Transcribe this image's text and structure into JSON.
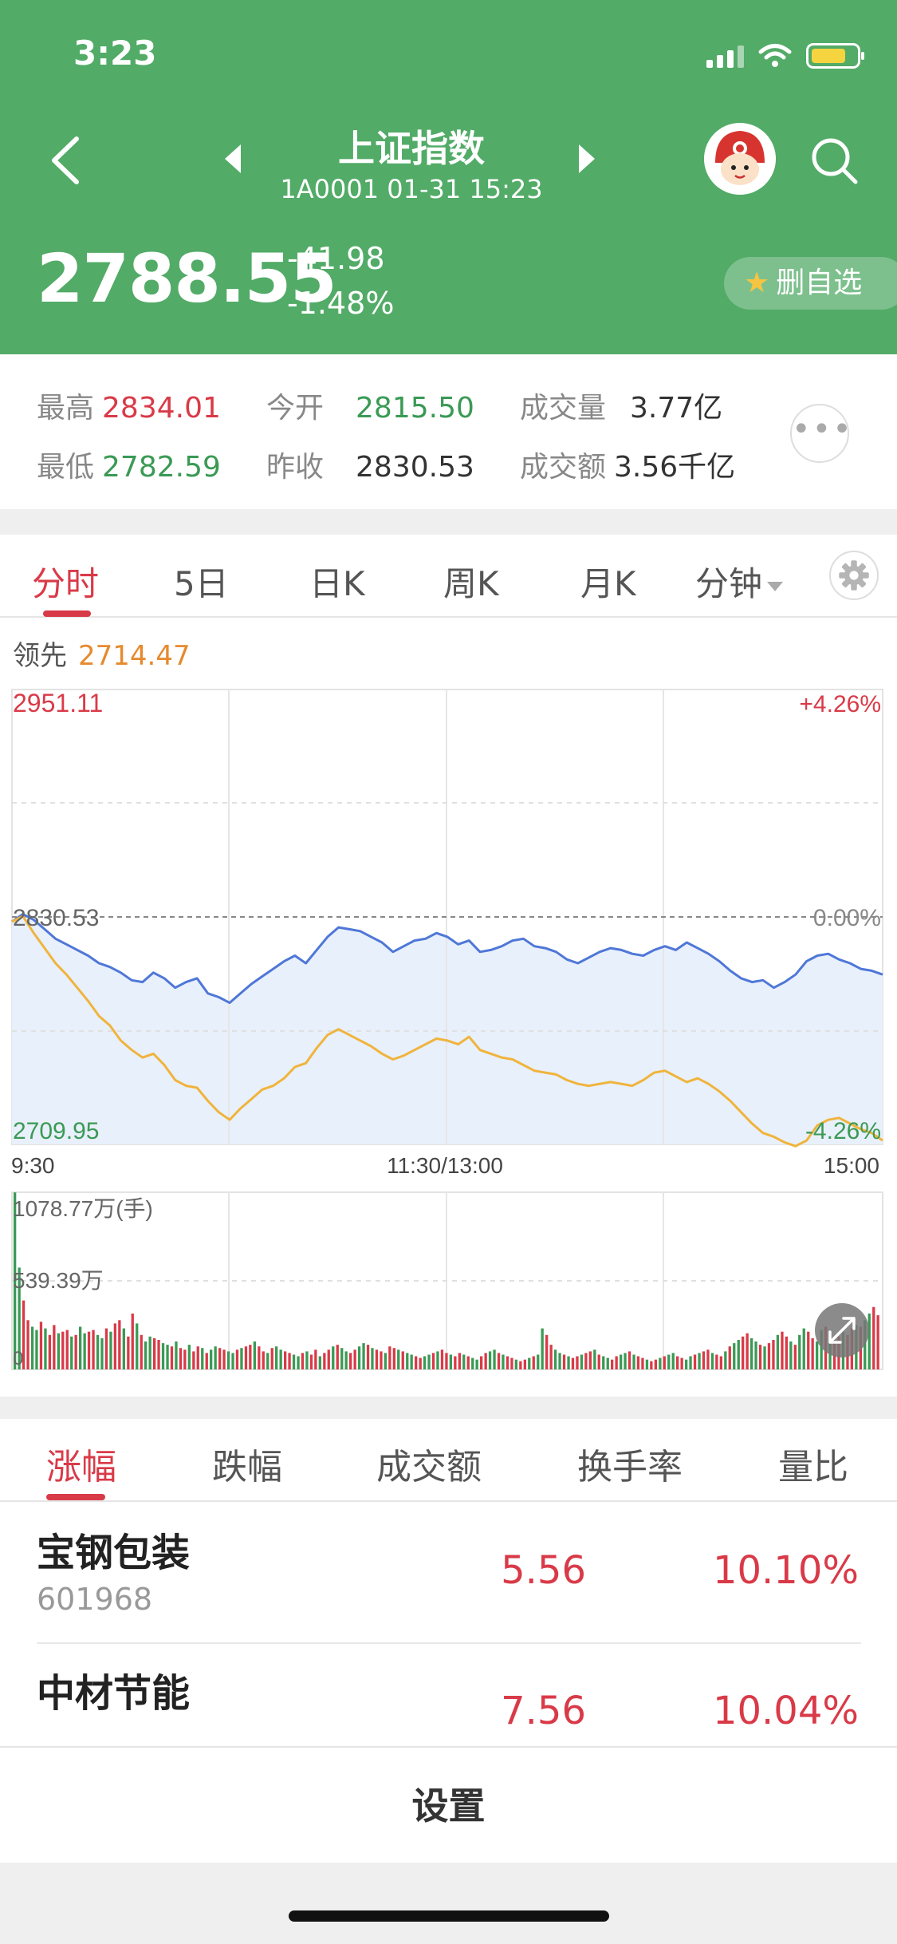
{
  "status": {
    "time": "3:23"
  },
  "header": {
    "title": "上证指数",
    "subtitle": "1A0001   01-31 15:23",
    "price": "2788.55",
    "change_abs": "-41.98",
    "change_pct": "-1.48%",
    "fav_label": "删自选"
  },
  "stats": {
    "high_label": "最高",
    "high": "2834.01",
    "open_label": "今开",
    "open": "2815.50",
    "vol_label": "成交量",
    "vol": "3.77亿",
    "low_label": "最低",
    "low": "2782.59",
    "prev_label": "昨收",
    "prev": "2830.53",
    "amt_label": "成交额",
    "amt": "3.56千亿"
  },
  "chart_tabs": [
    "分时",
    "5日",
    "日K",
    "周K",
    "月K",
    "分钟"
  ],
  "chart": {
    "lead_label": "领先",
    "lead_value": "2714.47",
    "ymax": "2951.11",
    "ymid": "2830.53",
    "ymin": "2709.95",
    "pct_top": "+4.26%",
    "pct_mid": "0.00%",
    "pct_bot": "-4.26%",
    "t_start": "9:30",
    "t_mid": "11:30/13:00",
    "t_end": "15:00",
    "vol_max": "1078.77万(手)",
    "vol_mid": "539.39万",
    "vol_zero": "0"
  },
  "chart_data": {
    "type": "line",
    "ylim": [
      2709.95,
      2951.11
    ],
    "baseline": 2830.53,
    "x_labels": [
      "9:30",
      "11:30/13:00",
      "15:00"
    ],
    "series": [
      {
        "color": "#4f77d8",
        "values": [
          2828,
          2832,
          2829,
          2824,
          2819,
          2816,
          2813,
          2810,
          2806,
          2804,
          2801,
          2797,
          2796,
          2801,
          2798,
          2793,
          2796,
          2798,
          2790,
          2788,
          2785,
          2790,
          2795,
          2799,
          2803,
          2807,
          2810,
          2806,
          2813,
          2820,
          2825,
          2824,
          2823,
          2820,
          2817,
          2812,
          2815,
          2818,
          2819,
          2822,
          2820,
          2816,
          2818,
          2812,
          2813,
          2815,
          2818,
          2819,
          2815,
          2814,
          2812,
          2808,
          2806,
          2809,
          2812,
          2814,
          2813,
          2811,
          2810,
          2813,
          2815,
          2813,
          2817,
          2814,
          2811,
          2807,
          2802,
          2798,
          2796,
          2797,
          2793,
          2796,
          2800,
          2807,
          2810,
          2811,
          2808,
          2806,
          2803,
          2802,
          2800
        ]
      },
      {
        "color": "#f0b43c",
        "values": [
          2828,
          2831,
          2822,
          2814,
          2806,
          2800,
          2793,
          2786,
          2778,
          2773,
          2765,
          2760,
          2756,
          2758,
          2752,
          2744,
          2741,
          2740,
          2733,
          2727,
          2723,
          2729,
          2734,
          2739,
          2741,
          2745,
          2751,
          2753,
          2761,
          2768,
          2771,
          2768,
          2765,
          2762,
          2758,
          2755,
          2757,
          2760,
          2763,
          2766,
          2765,
          2763,
          2767,
          2760,
          2758,
          2756,
          2755,
          2752,
          2749,
          2748,
          2747,
          2744,
          2742,
          2741,
          2742,
          2743,
          2742,
          2741,
          2744,
          2748,
          2749,
          2746,
          2743,
          2745,
          2742,
          2738,
          2733,
          2727,
          2721,
          2716,
          2714,
          2711,
          2709,
          2712,
          2720,
          2723,
          2724,
          2721,
          2718,
          2716,
          2712
        ]
      }
    ],
    "volume": {
      "ylim": [
        0,
        1078.77
      ],
      "unit": "万(手)",
      "values": [
        1078,
        620,
        420,
        300,
        260,
        240,
        290,
        250,
        210,
        270,
        220,
        230,
        240,
        200,
        210,
        260,
        220,
        230,
        240,
        210,
        190,
        250,
        230,
        280,
        300,
        250,
        200,
        340,
        280,
        210,
        170,
        200,
        190,
        180,
        160,
        150,
        140,
        170,
        130,
        120,
        150,
        110,
        140,
        130,
        100,
        120,
        140,
        130,
        120,
        110,
        100,
        120,
        130,
        140,
        150,
        170,
        140,
        110,
        100,
        130,
        140,
        120,
        110,
        100,
        90,
        80,
        100,
        110,
        90,
        120,
        80,
        100,
        120,
        140,
        150,
        130,
        110,
        100,
        120,
        140,
        160,
        150,
        130,
        120,
        110,
        100,
        140,
        130,
        120,
        110,
        100,
        90,
        80,
        70,
        80,
        90,
        100,
        110,
        120,
        100,
        90,
        80,
        100,
        90,
        80,
        70,
        60,
        80,
        100,
        110,
        120,
        100,
        90,
        80,
        70,
        60,
        50,
        60,
        70,
        80,
        90,
        250,
        210,
        150,
        120,
        100,
        90,
        80,
        70,
        80,
        90,
        100,
        110,
        120,
        90,
        80,
        70,
        60,
        80,
        90,
        100,
        110,
        90,
        80,
        70,
        60,
        50,
        60,
        70,
        80,
        90,
        100,
        80,
        70,
        60,
        80,
        90,
        100,
        110,
        120,
        100,
        90,
        80,
        110,
        140,
        160,
        180,
        200,
        220,
        190,
        170,
        150,
        140,
        160,
        180,
        210,
        230,
        200,
        170,
        150,
        210,
        250,
        230,
        190,
        170,
        240,
        260,
        220,
        180,
        200,
        230,
        210,
        250,
        270,
        260,
        300,
        340,
        380,
        330
      ]
    }
  },
  "list_tabs": [
    "涨幅",
    "跌幅",
    "成交额",
    "换手率",
    "量比"
  ],
  "stocks": [
    {
      "name": "宝钢包装",
      "code": "601968",
      "price": "5.56",
      "pct": "10.10%"
    },
    {
      "name": "中材节能",
      "code": "",
      "price": "7.56",
      "pct": "10.04%"
    }
  ],
  "footer": {
    "settings": "设置"
  },
  "colors": {
    "header_green": "#52ab67",
    "up_red": "#d93a48",
    "down_green": "#3a9a55",
    "index_line": "#4f77d8",
    "lead_line": "#f0b43c"
  },
  "icons": [
    "back-arrow-icon",
    "search-icon",
    "star-icon",
    "more-dots-icon",
    "settings-gear-icon",
    "expand-icon"
  ]
}
